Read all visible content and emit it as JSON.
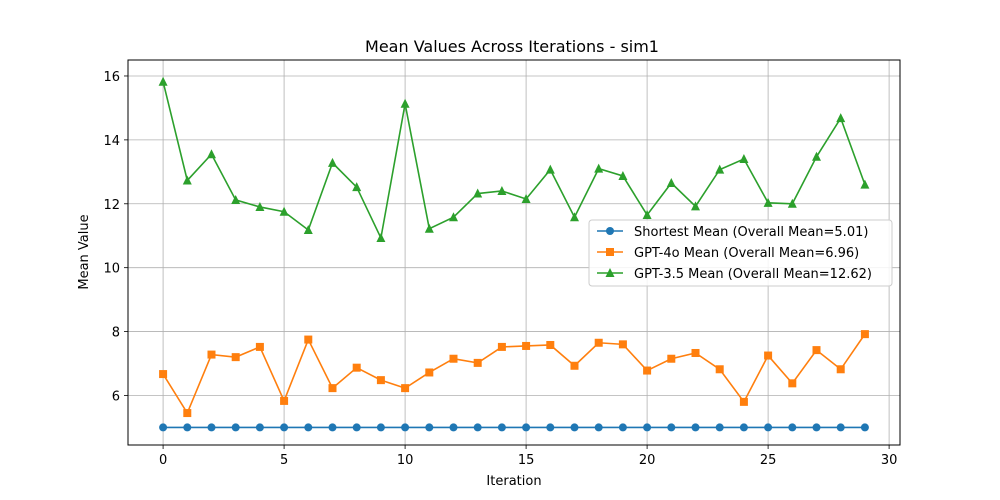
{
  "chart_data": {
    "type": "line",
    "title": "Mean Values Across Iterations - sim1",
    "xlabel": "Iteration",
    "ylabel": "Mean Value",
    "xlim": [
      -1.45,
      30.45
    ],
    "ylim": [
      4.45,
      16.5
    ],
    "xticks": [
      0,
      5,
      10,
      15,
      20,
      25,
      30
    ],
    "yticks": [
      6,
      8,
      10,
      12,
      14,
      16
    ],
    "grid": true,
    "legend_position": "center-right",
    "x": [
      0,
      1,
      2,
      3,
      4,
      5,
      6,
      7,
      8,
      9,
      10,
      11,
      12,
      13,
      14,
      15,
      16,
      17,
      18,
      19,
      20,
      21,
      22,
      23,
      24,
      25,
      26,
      27,
      28,
      29
    ],
    "series": [
      {
        "name": "Shortest Mean (Overall Mean=5.01)",
        "color": "#1f77b4",
        "marker": "circle",
        "values": [
          5,
          5,
          5,
          5,
          5,
          5,
          5,
          5,
          5,
          5,
          5,
          5,
          5,
          5,
          5,
          5,
          5,
          5,
          5,
          5,
          5,
          5,
          5,
          5,
          5,
          5,
          5,
          5,
          5,
          5
        ]
      },
      {
        "name": "GPT-4o Mean (Overall Mean=6.96)",
        "color": "#ff7f0e",
        "marker": "square",
        "values": [
          6.67,
          5.45,
          7.28,
          7.2,
          7.52,
          5.83,
          7.75,
          6.23,
          6.87,
          6.48,
          6.23,
          6.72,
          7.15,
          7.02,
          7.52,
          7.55,
          7.58,
          6.93,
          7.65,
          7.6,
          6.78,
          7.15,
          7.33,
          6.82,
          5.8,
          7.25,
          6.38,
          7.42,
          6.82,
          7.92
        ]
      },
      {
        "name": "GPT-3.5 Mean (Overall Mean=12.62)",
        "color": "#2ca02c",
        "marker": "triangle",
        "values": [
          15.82,
          12.73,
          13.55,
          12.12,
          11.9,
          11.75,
          11.18,
          13.28,
          12.52,
          10.93,
          15.13,
          11.22,
          11.58,
          12.32,
          12.4,
          12.15,
          13.07,
          11.58,
          13.1,
          12.87,
          11.65,
          12.65,
          11.92,
          13.07,
          13.4,
          12.03,
          12.0,
          13.47,
          14.68,
          12.6
        ]
      }
    ]
  }
}
